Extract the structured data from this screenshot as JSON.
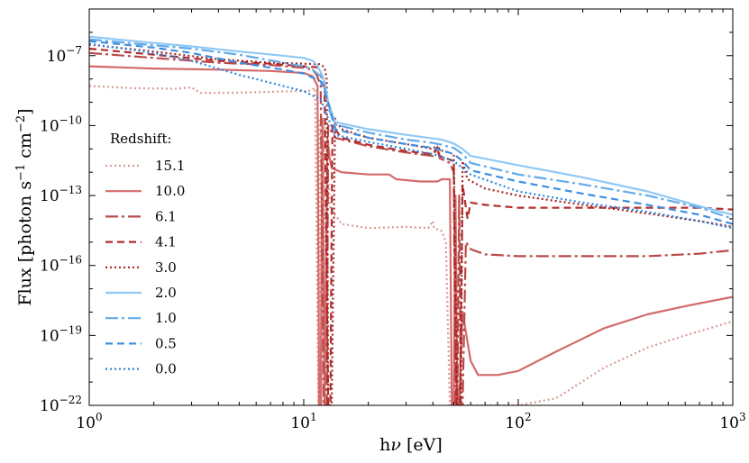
{
  "chart_data": {
    "type": "line",
    "xscale": "log",
    "yscale": "log",
    "xlim": [
      1,
      1000
    ],
    "ylim": [
      1e-22,
      1e-05
    ],
    "xlabel_parts": [
      "h",
      "ν",
      " [eV]"
    ],
    "ylabel_parts": [
      "Flux [photon s",
      "−1",
      " cm",
      "−2",
      "]"
    ],
    "legend_title": "Redshift:",
    "x_ticks": [
      {
        "value": 1,
        "base": "10",
        "exp": "0"
      },
      {
        "value": 10,
        "base": "10",
        "exp": "1"
      },
      {
        "value": 100,
        "base": "10",
        "exp": "2"
      },
      {
        "value": 1000,
        "base": "10",
        "exp": "3"
      }
    ],
    "y_ticks": [
      {
        "value": 1e-22,
        "base": "10",
        "exp": "−22"
      },
      {
        "value": 1e-19,
        "base": "10",
        "exp": "−19"
      },
      {
        "value": 1e-16,
        "base": "10",
        "exp": "−16"
      },
      {
        "value": 1e-13,
        "base": "10",
        "exp": "−13"
      },
      {
        "value": 1e-10,
        "base": "10",
        "exp": "−10"
      },
      {
        "value": 1e-07,
        "base": "10",
        "exp": "−7"
      }
    ],
    "series": [
      {
        "name": "15.1",
        "color": "#d99a96",
        "dash": "2,3",
        "width": 2.2,
        "points": [
          [
            1,
            5e-09
          ],
          [
            1.6,
            4e-09
          ],
          [
            2.5,
            3.8e-09
          ],
          [
            3,
            4.3e-09
          ],
          [
            3.3,
            2.5e-09
          ],
          [
            5,
            2.6e-09
          ],
          [
            7,
            2.8e-09
          ],
          [
            9,
            3e-09
          ],
          [
            10.5,
            3e-09
          ],
          [
            11.3,
            4e-09
          ],
          [
            11.7,
            1e-22
          ],
          [
            11.9,
            2e-10
          ],
          [
            12.1,
            1e-22
          ],
          [
            12.4,
            1e-10
          ],
          [
            12.6,
            1e-22
          ],
          [
            12.9,
            1e-12
          ],
          [
            13.3,
            3e-14
          ],
          [
            15,
            6e-15
          ],
          [
            20,
            4e-15
          ],
          [
            30,
            4.5e-15
          ],
          [
            38,
            4e-15
          ],
          [
            40,
            8e-15
          ],
          [
            40.5,
            4e-15
          ],
          [
            44,
            3e-15
          ],
          [
            46,
            1e-15
          ],
          [
            48,
            1e-22
          ],
          [
            50,
            1e-22
          ],
          [
            52,
            1e-22
          ],
          [
            60,
            1e-22
          ],
          [
            100,
            1e-22
          ],
          [
            150,
            2e-22
          ],
          [
            250,
            4e-21
          ],
          [
            400,
            3e-20
          ],
          [
            600,
            1e-19
          ],
          [
            1000,
            4e-19
          ]
        ]
      },
      {
        "name": "10.0",
        "color": "#d46a6a",
        "dash": "",
        "width": 2.2,
        "points": [
          [
            1,
            3.5e-08
          ],
          [
            2,
            2.8e-08
          ],
          [
            4,
            2.5e-08
          ],
          [
            7,
            2.2e-08
          ],
          [
            10,
            1.8e-08
          ],
          [
            11,
            1.3e-08
          ],
          [
            11.6,
            5e-09
          ],
          [
            11.8,
            1e-22
          ],
          [
            12,
            1e-22
          ],
          [
            12.2,
            2e-10
          ],
          [
            12.5,
            1e-22
          ],
          [
            12.9,
            3e-11
          ],
          [
            13.2,
            4e-12
          ],
          [
            13.5,
            1.5e-12
          ],
          [
            15,
            1e-12
          ],
          [
            20,
            8e-13
          ],
          [
            25,
            8e-13
          ],
          [
            27,
            5e-13
          ],
          [
            35,
            4e-13
          ],
          [
            42,
            4e-13
          ],
          [
            44,
            5e-13
          ],
          [
            48,
            5e-13
          ],
          [
            49,
            1e-22
          ],
          [
            50,
            1e-22
          ],
          [
            51,
            1e-13
          ],
          [
            52,
            1e-22
          ],
          [
            53,
            1e-22
          ],
          [
            55,
            1e-18
          ],
          [
            60,
            8e-21
          ],
          [
            65,
            2e-21
          ],
          [
            80,
            2e-21
          ],
          [
            100,
            3e-21
          ],
          [
            150,
            2e-20
          ],
          [
            250,
            2e-19
          ],
          [
            400,
            8e-19
          ],
          [
            600,
            1.8e-18
          ],
          [
            1000,
            4.5e-18
          ]
        ]
      },
      {
        "name": "6.1",
        "color": "#b94a4a",
        "dash": "14,4,3,4",
        "width": 2.2,
        "points": [
          [
            1,
            1.3e-07
          ],
          [
            2,
            8e-08
          ],
          [
            4,
            5e-08
          ],
          [
            7,
            4e-08
          ],
          [
            10,
            3e-08
          ],
          [
            11,
            2.5e-08
          ],
          [
            11.5,
            1.5e-08
          ],
          [
            12,
            5e-09
          ],
          [
            12.4,
            1e-22
          ],
          [
            12.8,
            1e-22
          ],
          [
            13,
            1e-10
          ],
          [
            14,
            3e-11
          ],
          [
            20,
            1.3e-11
          ],
          [
            30,
            7e-12
          ],
          [
            40,
            5e-12
          ],
          [
            42,
            1e-11
          ],
          [
            43,
            4e-12
          ],
          [
            48,
            2.5e-12
          ],
          [
            50,
            1e-12
          ],
          [
            51,
            1e-22
          ],
          [
            52,
            1e-22
          ],
          [
            53,
            1e-13
          ],
          [
            54,
            1e-22
          ],
          [
            55,
            1e-22
          ],
          [
            57,
            1e-15
          ],
          [
            60,
            5e-16
          ],
          [
            70,
            3e-16
          ],
          [
            100,
            2.5e-16
          ],
          [
            200,
            2.5e-16
          ],
          [
            400,
            2.5e-16
          ],
          [
            700,
            3.2e-16
          ],
          [
            1000,
            4.5e-16
          ]
        ]
      },
      {
        "name": "4.1",
        "color": "#b02e2e",
        "dash": "8,5",
        "width": 2.2,
        "points": [
          [
            1,
            2e-07
          ],
          [
            2,
            1.1e-07
          ],
          [
            4,
            6e-08
          ],
          [
            7,
            4.5e-08
          ],
          [
            10,
            3.5e-08
          ],
          [
            11.5,
            3.2e-08
          ],
          [
            12,
            2e-08
          ],
          [
            12.5,
            5e-09
          ],
          [
            13,
            1e-22
          ],
          [
            13.3,
            1e-22
          ],
          [
            13.6,
            1e-10
          ],
          [
            15,
            3e-11
          ],
          [
            20,
            1.5e-11
          ],
          [
            30,
            8e-12
          ],
          [
            40,
            6e-12
          ],
          [
            42,
            1.2e-11
          ],
          [
            43,
            5e-12
          ],
          [
            50,
            3e-12
          ],
          [
            51.5,
            1e-22
          ],
          [
            53.5,
            1e-22
          ],
          [
            55,
            3e-13
          ],
          [
            58,
            1e-14
          ],
          [
            60,
            5e-14
          ],
          [
            70,
            4e-14
          ],
          [
            100,
            3e-14
          ],
          [
            200,
            3e-14
          ],
          [
            400,
            3e-14
          ],
          [
            700,
            3e-14
          ],
          [
            1000,
            2.5e-14
          ]
        ]
      },
      {
        "name": "3.0",
        "color": "#a32222",
        "dash": "2,3",
        "width": 2.2,
        "points": [
          [
            1,
            3e-07
          ],
          [
            2,
            1.5e-07
          ],
          [
            4,
            7e-08
          ],
          [
            7,
            5e-08
          ],
          [
            10,
            4.5e-08
          ],
          [
            12,
            4.3e-08
          ],
          [
            12.5,
            3e-08
          ],
          [
            12.8,
            1e-08
          ],
          [
            13,
            1e-22
          ],
          [
            13.5,
            1e-22
          ],
          [
            14,
            2e-10
          ],
          [
            15,
            7e-11
          ],
          [
            20,
            3e-11
          ],
          [
            30,
            1.6e-11
          ],
          [
            40,
            1e-11
          ],
          [
            42,
            1.6e-11
          ],
          [
            43,
            9e-12
          ],
          [
            50,
            6e-12
          ],
          [
            52,
            1e-22
          ],
          [
            54,
            1e-22
          ],
          [
            55,
            3e-12
          ],
          [
            58,
            5e-13
          ],
          [
            70,
            2e-13
          ],
          [
            100,
            1e-13
          ],
          [
            200,
            4e-14
          ],
          [
            400,
            1.7e-14
          ],
          [
            700,
            8e-15
          ],
          [
            1000,
            4.5e-15
          ]
        ]
      },
      {
        "name": "2.0",
        "color": "#90c8f5",
        "dash": "",
        "width": 2.2,
        "points": [
          [
            1,
            6.5e-07
          ],
          [
            2,
            3.5e-07
          ],
          [
            3,
            2.5e-07
          ],
          [
            5,
            1.5e-07
          ],
          [
            8,
            1e-07
          ],
          [
            10,
            8e-08
          ],
          [
            11,
            6e-08
          ],
          [
            11.5,
            4e-08
          ],
          [
            12,
            2e-08
          ],
          [
            12.5,
            8e-09
          ],
          [
            13,
            1e-09
          ],
          [
            14,
            1.4e-10
          ],
          [
            20,
            7e-11
          ],
          [
            30,
            4e-11
          ],
          [
            40,
            2.8e-11
          ],
          [
            44,
            2.5e-11
          ],
          [
            50,
            1.7e-11
          ],
          [
            55,
            1e-11
          ],
          [
            60,
            5e-12
          ],
          [
            100,
            2e-12
          ],
          [
            200,
            6e-13
          ],
          [
            400,
            1.5e-13
          ],
          [
            700,
            3.5e-14
          ],
          [
            1000,
            1.5e-14
          ]
        ]
      },
      {
        "name": "1.0",
        "color": "#62aaea",
        "dash": "14,4,3,4",
        "width": 2.2,
        "points": [
          [
            1,
            5e-07
          ],
          [
            2,
            2.8e-07
          ],
          [
            3,
            2e-07
          ],
          [
            5,
            1.1e-07
          ],
          [
            8,
            5e-08
          ],
          [
            10,
            3.5e-08
          ],
          [
            11,
            2.5e-08
          ],
          [
            12,
            1.3e-08
          ],
          [
            12.5,
            4e-09
          ],
          [
            13,
            6e-10
          ],
          [
            14,
            1.1e-10
          ],
          [
            20,
            5e-11
          ],
          [
            30,
            2.5e-11
          ],
          [
            40,
            1.8e-11
          ],
          [
            44,
            1.5e-11
          ],
          [
            50,
            1.1e-11
          ],
          [
            55,
            6e-12
          ],
          [
            60,
            2.5e-12
          ],
          [
            100,
            8e-13
          ],
          [
            200,
            3e-13
          ],
          [
            400,
            1e-13
          ],
          [
            700,
            3e-14
          ],
          [
            1000,
            1e-14
          ]
        ]
      },
      {
        "name": "0.5",
        "color": "#3f8fe0",
        "dash": "8,5",
        "width": 2.2,
        "points": [
          [
            1,
            4.2e-07
          ],
          [
            2,
            2.2e-07
          ],
          [
            3,
            1.3e-07
          ],
          [
            5,
            5e-08
          ],
          [
            8,
            2.5e-08
          ],
          [
            10,
            1.7e-08
          ],
          [
            12,
            8e-09
          ],
          [
            13,
            1e-09
          ],
          [
            14,
            7e-11
          ],
          [
            20,
            3e-11
          ],
          [
            30,
            1.6e-11
          ],
          [
            40,
            1.1e-11
          ],
          [
            50,
            6e-12
          ],
          [
            55,
            3e-12
          ],
          [
            60,
            1.2e-12
          ],
          [
            100,
            4e-13
          ],
          [
            200,
            1.2e-13
          ],
          [
            400,
            4e-14
          ],
          [
            700,
            1.5e-14
          ],
          [
            1000,
            6e-15
          ]
        ]
      },
      {
        "name": "0.0",
        "color": "#2a86dd",
        "dash": "2,3",
        "width": 2.2,
        "points": [
          [
            1,
            3.2e-07
          ],
          [
            2,
            1.3e-07
          ],
          [
            3,
            6e-08
          ],
          [
            5,
            1.5e-08
          ],
          [
            8,
            5e-09
          ],
          [
            10,
            3e-09
          ],
          [
            12,
            1.3e-09
          ],
          [
            13,
            2e-10
          ],
          [
            14,
            4e-11
          ],
          [
            20,
            2e-11
          ],
          [
            30,
            1e-11
          ],
          [
            40,
            6e-12
          ],
          [
            50,
            3e-12
          ],
          [
            55,
            1.5e-12
          ],
          [
            60,
            8e-13
          ],
          [
            100,
            1.5e-13
          ],
          [
            200,
            5e-14
          ],
          [
            400,
            2e-14
          ],
          [
            700,
            8e-15
          ],
          [
            1000,
            4e-15
          ]
        ]
      }
    ]
  }
}
